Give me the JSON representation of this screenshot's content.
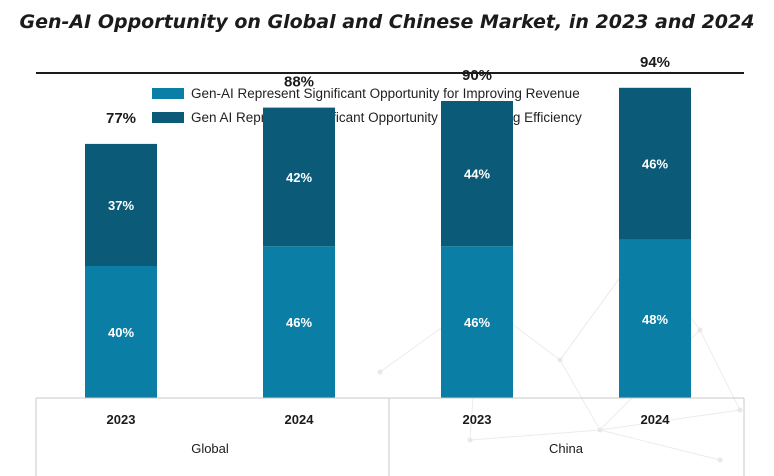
{
  "title": "Gen-AI Opportunity on Global and Chinese Market, in 2023 and 2024",
  "colors": {
    "revenue": "#0a7ea4",
    "efficiency": "#0a5a78",
    "text": "#1b1b1b"
  },
  "chart_data": {
    "type": "bar",
    "stacked": true,
    "categories": [
      "2023",
      "2024",
      "2023",
      "2024"
    ],
    "groups": [
      {
        "name": "Global",
        "categories": [
          "2023",
          "2024"
        ]
      },
      {
        "name": "China",
        "categories": [
          "2023",
          "2024"
        ]
      }
    ],
    "series": [
      {
        "name": "Gen-AI Represent Significant Opportunity for Improving Revenue",
        "values": [
          40,
          46,
          46,
          48
        ],
        "labels": [
          "40%",
          "46%",
          "46%",
          "48%"
        ]
      },
      {
        "name": "Gen AI Represent Significant Opportunity for Improving Efficiency",
        "values": [
          37,
          42,
          44,
          46
        ],
        "labels": [
          "37%",
          "42%",
          "44%",
          "46%"
        ]
      }
    ],
    "totals": [
      77,
      88,
      90,
      94
    ],
    "total_labels": [
      "77%",
      "88%",
      "90%",
      "94%"
    ],
    "ylim": [
      0,
      100
    ],
    "grid": false,
    "legend_position": "top"
  }
}
